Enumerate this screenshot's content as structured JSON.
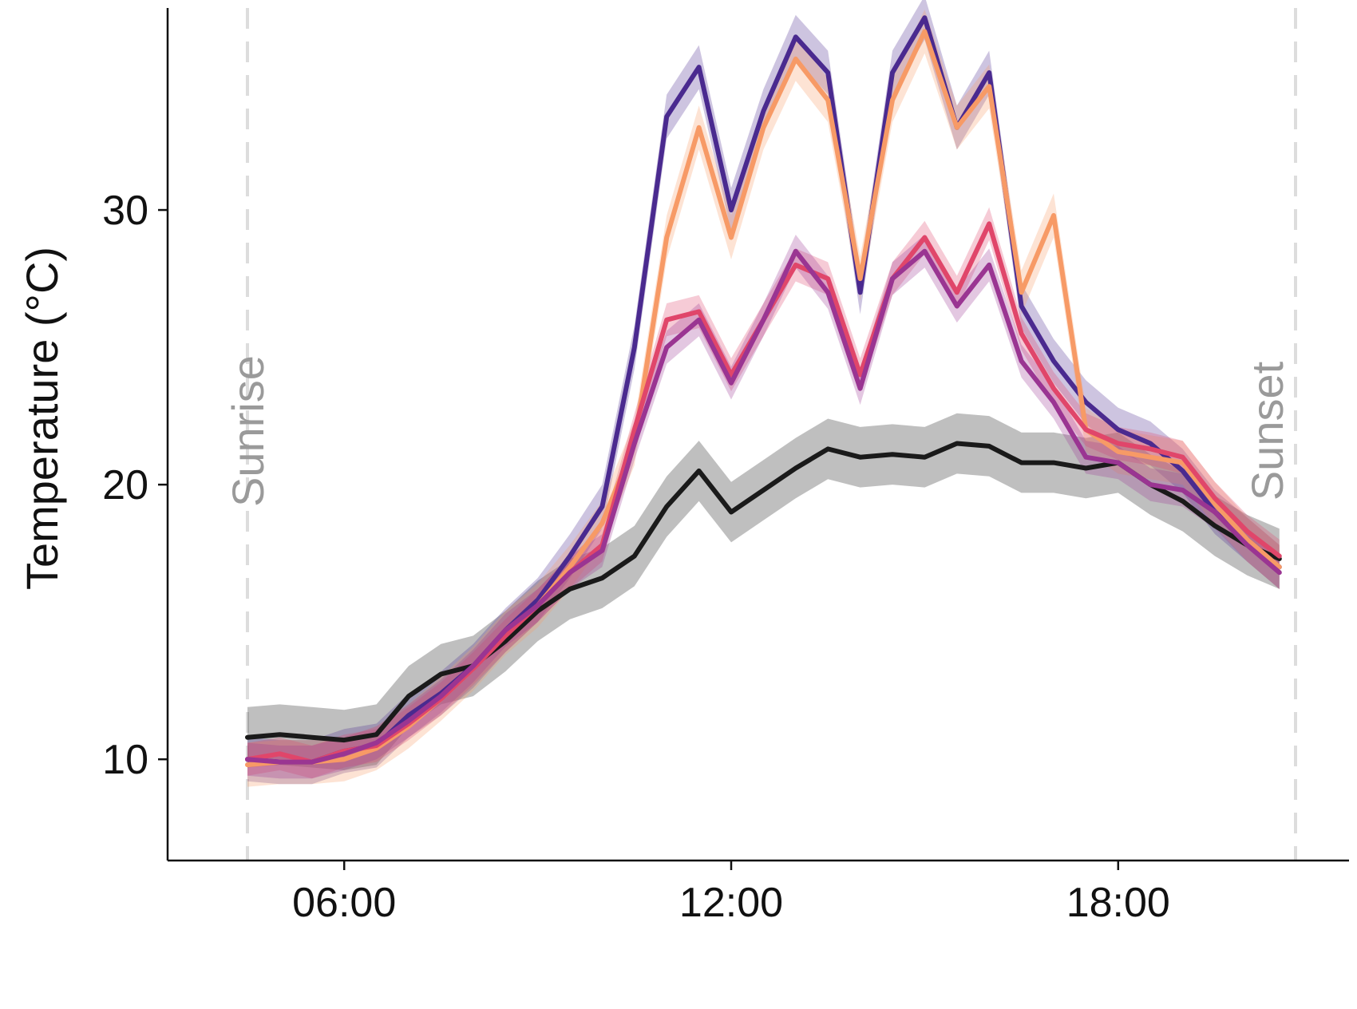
{
  "chart_data": {
    "type": "line",
    "title": "",
    "xlabel": "",
    "ylabel": "Temperature (°C)",
    "xlim": [
      "04:30",
      "20:45"
    ],
    "ylim": [
      8,
      37.5
    ],
    "x_ticks": [
      "06:00",
      "12:00",
      "18:00"
    ],
    "y_ticks": [
      10,
      20,
      30
    ],
    "grid": false,
    "legend": "none",
    "annotations": [
      {
        "label": "Sunrise",
        "x": "04:30"
      },
      {
        "label": "Sunset",
        "x": "20:45"
      }
    ],
    "series": [
      {
        "color": "#1a1a1a",
        "points": [
          [
            "04:30",
            10.8
          ],
          [
            "05:00",
            10.9
          ],
          [
            "05:30",
            10.8
          ],
          [
            "06:00",
            10.7
          ],
          [
            "06:30",
            10.9
          ],
          [
            "07:00",
            12.3
          ],
          [
            "07:30",
            13.1
          ],
          [
            "08:00",
            13.4
          ],
          [
            "08:30",
            14.3
          ],
          [
            "09:00",
            15.4
          ],
          [
            "09:30",
            16.2
          ],
          [
            "10:00",
            16.6
          ],
          [
            "10:30",
            17.4
          ],
          [
            "11:00",
            19.2
          ],
          [
            "11:30",
            20.5
          ],
          [
            "12:00",
            19.0
          ],
          [
            "12:30",
            19.8
          ],
          [
            "13:00",
            20.6
          ],
          [
            "13:30",
            21.3
          ],
          [
            "14:00",
            21.0
          ],
          [
            "14:30",
            21.1
          ],
          [
            "15:00",
            21.0
          ],
          [
            "15:30",
            21.5
          ],
          [
            "16:00",
            21.4
          ],
          [
            "16:30",
            20.8
          ],
          [
            "17:00",
            20.8
          ],
          [
            "17:30",
            20.6
          ],
          [
            "18:00",
            20.8
          ],
          [
            "18:30",
            20.0
          ],
          [
            "19:00",
            19.4
          ],
          [
            "19:30",
            18.5
          ],
          [
            "20:00",
            17.8
          ],
          [
            "20:30",
            17.3
          ]
        ]
      },
      {
        "color": "#4a2a8f",
        "points": [
          [
            "04:30",
            10.0
          ],
          [
            "05:00",
            9.9
          ],
          [
            "05:30",
            9.9
          ],
          [
            "06:00",
            10.3
          ],
          [
            "06:30",
            10.5
          ],
          [
            "07:00",
            11.6
          ],
          [
            "07:30",
            12.4
          ],
          [
            "08:00",
            13.4
          ],
          [
            "08:30",
            14.7
          ],
          [
            "09:00",
            15.8
          ],
          [
            "09:30",
            17.4
          ],
          [
            "10:00",
            19.2
          ],
          [
            "10:30",
            25.0
          ],
          [
            "11:00",
            33.4
          ],
          [
            "11:30",
            35.2
          ],
          [
            "12:00",
            30.0
          ],
          [
            "12:30",
            33.6
          ],
          [
            "13:00",
            36.3
          ],
          [
            "13:30",
            35.0
          ],
          [
            "14:00",
            27.0
          ],
          [
            "14:30",
            35.0
          ],
          [
            "15:00",
            37.0
          ],
          [
            "15:30",
            33.0
          ],
          [
            "16:00",
            35.0
          ],
          [
            "16:30",
            26.5
          ],
          [
            "17:00",
            24.5
          ],
          [
            "17:30",
            23.0
          ],
          [
            "18:00",
            22.0
          ],
          [
            "18:30",
            21.5
          ],
          [
            "19:00",
            20.5
          ],
          [
            "19:30",
            19.0
          ],
          [
            "20:00",
            18.0
          ],
          [
            "20:30",
            17.0
          ]
        ]
      },
      {
        "color": "#f79a66",
        "points": [
          [
            "04:30",
            9.8
          ],
          [
            "05:00",
            9.9
          ],
          [
            "05:30",
            9.9
          ],
          [
            "06:00",
            10.0
          ],
          [
            "06:30",
            10.4
          ],
          [
            "07:00",
            11.2
          ],
          [
            "07:30",
            12.2
          ],
          [
            "08:00",
            13.3
          ],
          [
            "08:30",
            14.6
          ],
          [
            "09:00",
            15.6
          ],
          [
            "09:30",
            17.0
          ],
          [
            "10:00",
            18.6
          ],
          [
            "10:30",
            21.5
          ],
          [
            "11:00",
            29.0
          ],
          [
            "11:30",
            33.0
          ],
          [
            "12:00",
            29.0
          ],
          [
            "12:30",
            33.0
          ],
          [
            "13:00",
            35.5
          ],
          [
            "13:30",
            34.0
          ],
          [
            "14:00",
            27.5
          ],
          [
            "14:30",
            34.0
          ],
          [
            "15:00",
            36.5
          ],
          [
            "15:30",
            33.0
          ],
          [
            "16:00",
            34.5
          ],
          [
            "16:30",
            27.0
          ],
          [
            "17:00",
            29.8
          ],
          [
            "17:30",
            22.0
          ],
          [
            "18:00",
            21.2
          ],
          [
            "18:30",
            21.0
          ],
          [
            "19:00",
            20.8
          ],
          [
            "19:30",
            19.3
          ],
          [
            "20:00",
            18.0
          ],
          [
            "20:30",
            17.0
          ]
        ]
      },
      {
        "color": "#e0466a",
        "points": [
          [
            "04:30",
            10.0
          ],
          [
            "05:00",
            10.2
          ],
          [
            "05:30",
            9.9
          ],
          [
            "06:00",
            10.3
          ],
          [
            "06:30",
            10.5
          ],
          [
            "07:00",
            11.3
          ],
          [
            "07:30",
            12.2
          ],
          [
            "08:00",
            13.3
          ],
          [
            "08:30",
            14.5
          ],
          [
            "09:00",
            15.6
          ],
          [
            "09:30",
            16.8
          ],
          [
            "10:00",
            17.8
          ],
          [
            "10:30",
            22.0
          ],
          [
            "11:00",
            26.0
          ],
          [
            "11:30",
            26.3
          ],
          [
            "12:00",
            24.0
          ],
          [
            "12:30",
            26.0
          ],
          [
            "13:00",
            28.0
          ],
          [
            "13:30",
            27.5
          ],
          [
            "14:00",
            24.0
          ],
          [
            "14:30",
            27.5
          ],
          [
            "15:00",
            29.0
          ],
          [
            "15:30",
            27.0
          ],
          [
            "16:00",
            29.5
          ],
          [
            "16:30",
            25.5
          ],
          [
            "17:00",
            23.5
          ],
          [
            "17:30",
            22.0
          ],
          [
            "18:00",
            21.5
          ],
          [
            "18:30",
            21.3
          ],
          [
            "19:00",
            21.0
          ],
          [
            "19:30",
            19.5
          ],
          [
            "20:00",
            18.3
          ],
          [
            "20:30",
            17.4
          ]
        ]
      },
      {
        "color": "#9a3592",
        "points": [
          [
            "04:30",
            10.0
          ],
          [
            "05:00",
            9.9
          ],
          [
            "05:30",
            9.9
          ],
          [
            "06:00",
            10.2
          ],
          [
            "06:30",
            10.6
          ],
          [
            "07:00",
            11.4
          ],
          [
            "07:30",
            12.3
          ],
          [
            "08:00",
            13.4
          ],
          [
            "08:30",
            14.7
          ],
          [
            "09:00",
            15.6
          ],
          [
            "09:30",
            16.8
          ],
          [
            "10:00",
            17.6
          ],
          [
            "10:30",
            21.5
          ],
          [
            "11:00",
            25.0
          ],
          [
            "11:30",
            26.0
          ],
          [
            "12:00",
            23.7
          ],
          [
            "12:30",
            26.0
          ],
          [
            "13:00",
            28.5
          ],
          [
            "13:30",
            27.0
          ],
          [
            "14:00",
            23.5
          ],
          [
            "14:30",
            27.5
          ],
          [
            "15:00",
            28.5
          ],
          [
            "15:30",
            26.5
          ],
          [
            "16:00",
            28.0
          ],
          [
            "16:30",
            24.5
          ],
          [
            "17:00",
            23.0
          ],
          [
            "17:30",
            21.0
          ],
          [
            "18:00",
            20.8
          ],
          [
            "18:30",
            20.0
          ],
          [
            "19:00",
            19.8
          ],
          [
            "19:30",
            19.0
          ],
          [
            "20:00",
            17.8
          ],
          [
            "20:30",
            16.8
          ]
        ]
      }
    ]
  }
}
